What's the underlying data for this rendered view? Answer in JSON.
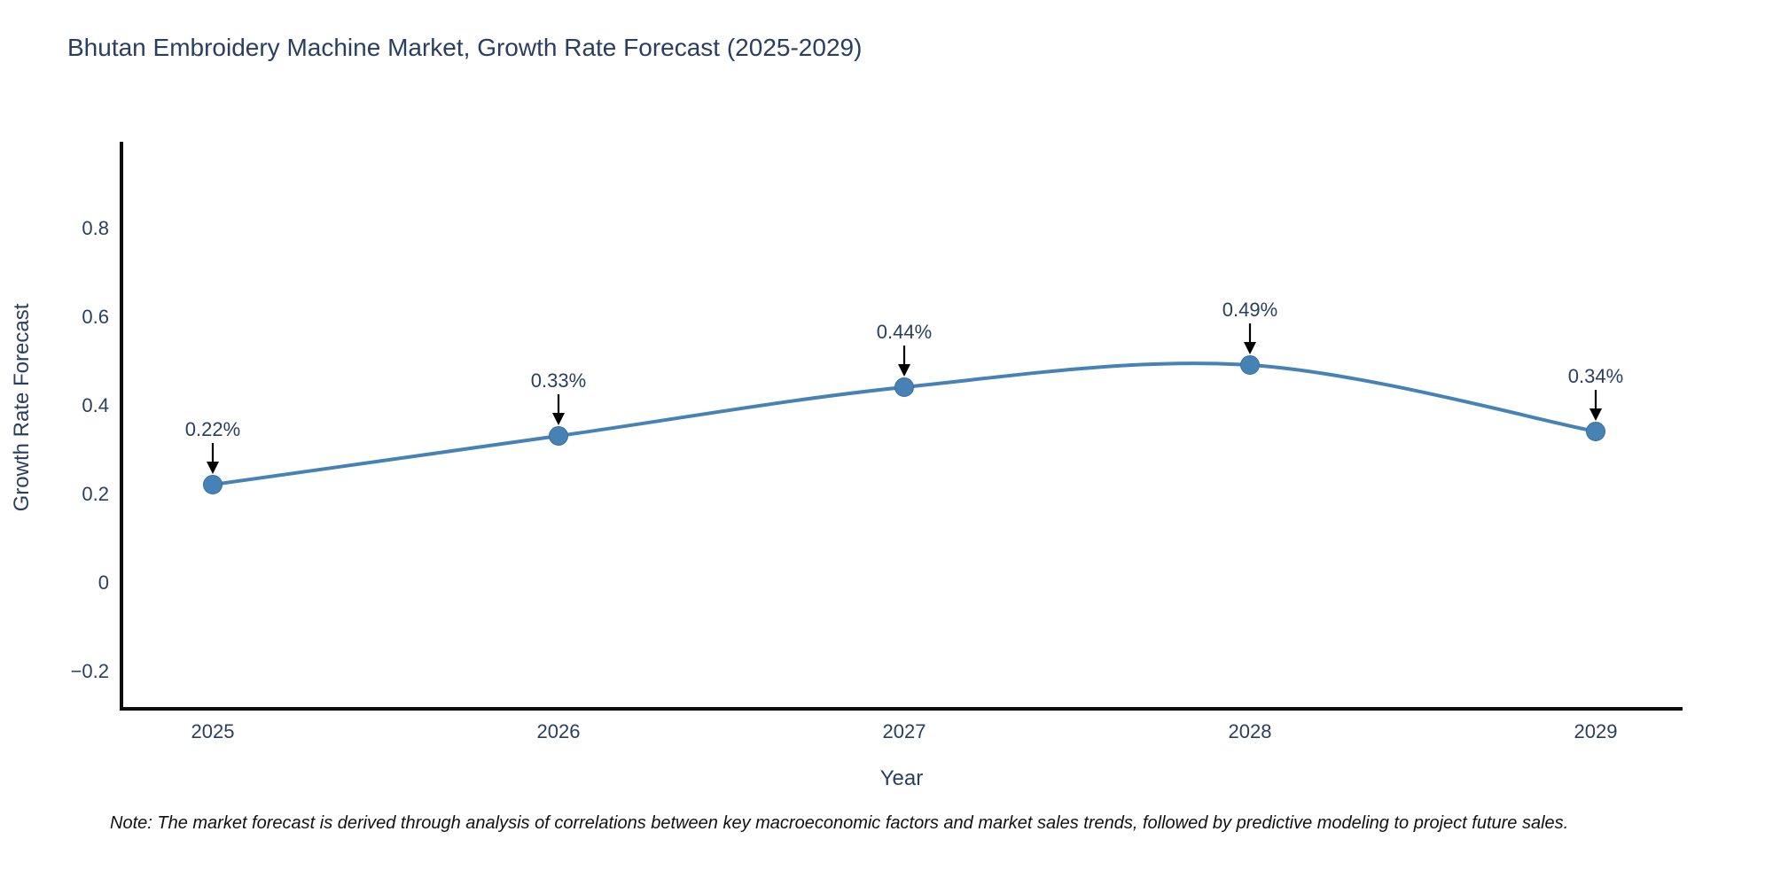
{
  "chart_data": {
    "type": "line",
    "curve": "spline",
    "title": "Bhutan Embroidery Machine Market, Growth Rate Forecast (2025-2029)",
    "xlabel": "Year",
    "ylabel": "Growth Rate Forecast",
    "x": [
      2025,
      2026,
      2027,
      2028,
      2029
    ],
    "x_tick_labels": [
      "2025",
      "2026",
      "2027",
      "2028",
      "2029"
    ],
    "values": [
      0.22,
      0.33,
      0.44,
      0.49,
      0.34
    ],
    "point_labels": [
      "0.22%",
      "0.33%",
      "0.44%",
      "0.49%",
      "0.34%"
    ],
    "ytick_values": [
      0.8,
      0.6,
      0.4,
      0.2,
      0,
      -0.2
    ],
    "ytick_labels": [
      "0.8",
      "0.6",
      "0.4",
      "0.2",
      "0",
      "−0.2"
    ],
    "ylim": [
      -0.29,
      0.99
    ],
    "xlim": [
      2024.74,
      2029.25
    ],
    "grid": false,
    "legend": "none",
    "line_color": "#4682B4",
    "marker_color": "#4682B4",
    "marker_edge_color": "#3a6f9f",
    "axis_color": "#0d0d0d",
    "text_color": "#2a3f5f",
    "annotation_arrow_color": "#000000"
  },
  "note": {
    "text": "Note: The market forecast is derived through analysis of correlations between key macroeconomic factors and market sales trends, followed by predictive modeling to project future sales."
  }
}
